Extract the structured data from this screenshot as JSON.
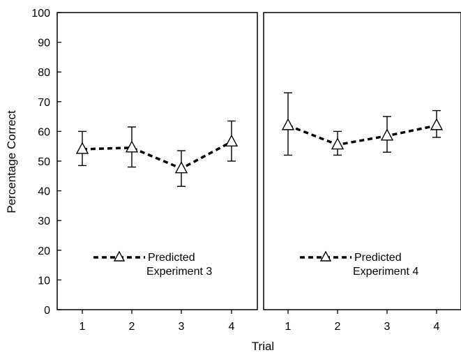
{
  "chart_data": {
    "type": "line",
    "xlabel": "Trial",
    "ylabel": "Percentage Correct",
    "ylim": [
      0,
      100
    ],
    "yticks": [
      0,
      10,
      20,
      30,
      40,
      50,
      60,
      70,
      80,
      90,
      100
    ],
    "categories": [
      "1",
      "2",
      "3",
      "4"
    ],
    "panels": [
      {
        "series": [
          {
            "name": "Predicted",
            "values": [
              54,
              54.5,
              47.5,
              56.5
            ],
            "error_low": [
              48.5,
              48,
              41.5,
              50
            ],
            "error_high": [
              60,
              61.5,
              53.5,
              63.5
            ]
          }
        ],
        "legend": {
          "series_label": "Predicted",
          "caption": "Experiment 3",
          "position": "bottom-left"
        }
      },
      {
        "series": [
          {
            "name": "Predicted",
            "values": [
              62,
              55.5,
              58.5,
              62
            ],
            "error_low": [
              52,
              52,
              53,
              58
            ],
            "error_high": [
              73,
              60,
              65,
              67
            ]
          }
        ],
        "legend": {
          "series_label": "Predicted",
          "caption": "Experiment 4",
          "position": "bottom-left"
        }
      }
    ],
    "grid": false
  }
}
